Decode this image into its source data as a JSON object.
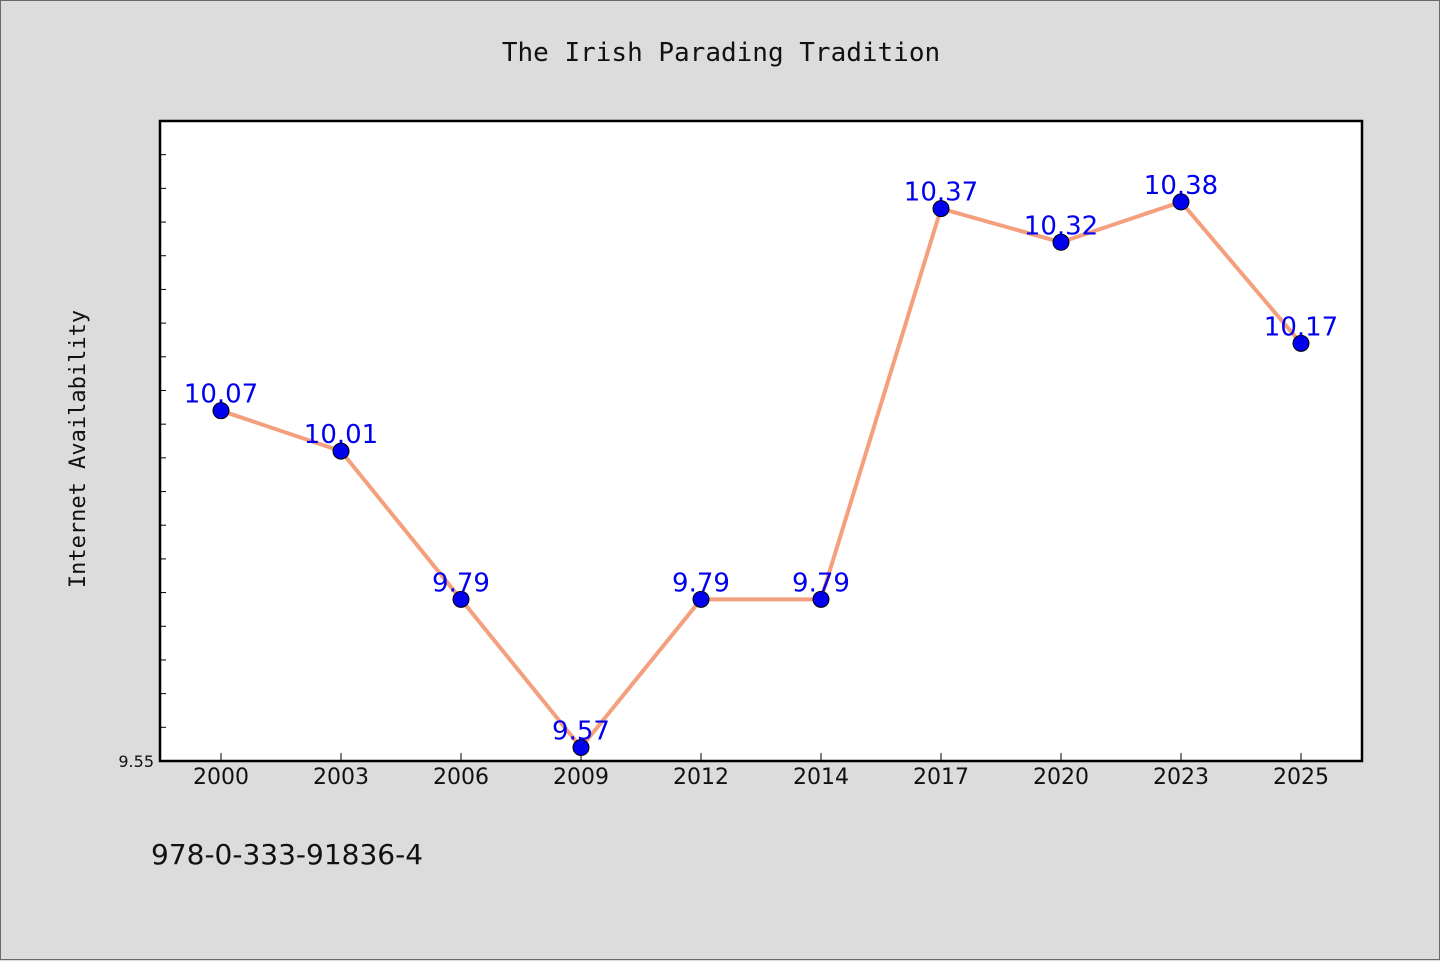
{
  "chart_data": {
    "type": "line",
    "title": "The Irish Parading Tradition",
    "xlabel": "",
    "ylabel": "Internet Availability",
    "categories": [
      "2000",
      "2003",
      "2006",
      "2009",
      "2012",
      "2014",
      "2017",
      "2020",
      "2023",
      "2025"
    ],
    "series": [
      {
        "values": [
          10.07,
          10.01,
          9.79,
          9.57,
          9.79,
          9.79,
          10.37,
          10.32,
          10.38,
          10.17
        ],
        "data_labels": [
          "10.07",
          "10.01",
          "9.79",
          "9.57",
          "9.79",
          "9.79",
          "10.37",
          "10.32",
          "10.38",
          "10.17"
        ],
        "line_color": "#f4a07e",
        "marker_color": "#0000ee"
      }
    ],
    "ylim": [
      9.55,
      10.5
    ],
    "yticks_labeled": [
      "9.55"
    ],
    "grid": false,
    "legend": "none"
  },
  "footer": {
    "isbn": "978-0-333-91836-4"
  },
  "colors": {
    "background": "#dcdcdc",
    "plot_area": "#ffffff",
    "data_label": "#0000ee"
  }
}
